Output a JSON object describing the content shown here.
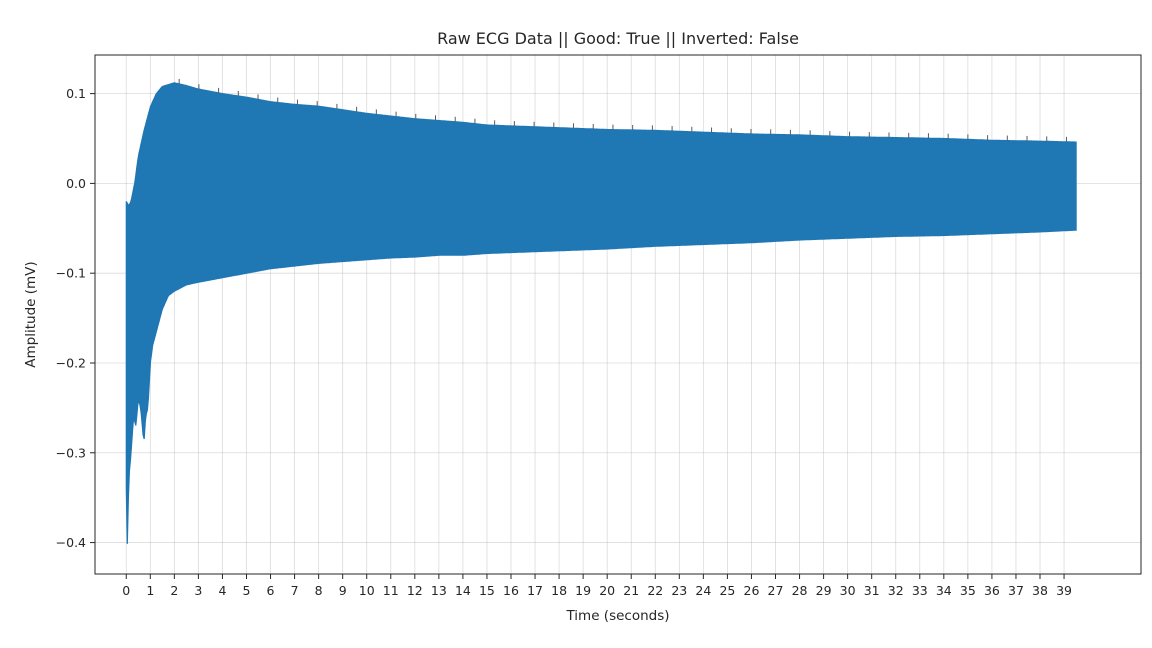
{
  "chart_data": {
    "type": "line",
    "title": "Raw ECG Data || Good: True || Inverted: False",
    "xlabel": "Time (seconds)",
    "ylabel": "Amplitude (mV)",
    "xlim": [
      -1.3,
      42.2
    ],
    "ylim": [
      -0.435,
      0.143
    ],
    "xticks": [
      0,
      1,
      2,
      3,
      4,
      5,
      6,
      7,
      8,
      9,
      10,
      11,
      12,
      13,
      14,
      15,
      16,
      17,
      18,
      19,
      20,
      21,
      22,
      23,
      24,
      25,
      26,
      27,
      28,
      29,
      30,
      31,
      32,
      33,
      34,
      35,
      36,
      37,
      38,
      39
    ],
    "yticks": [
      0.1,
      0.0,
      -0.1,
      -0.2,
      -0.3,
      -0.4
    ],
    "ytick_labels": [
      "0.1",
      "0.0",
      "−0.1",
      "−0.2",
      "−0.3",
      "−0.4"
    ],
    "grid": true,
    "series": [
      {
        "color": "#1f77b4",
        "upper_envelope": {
          "x": [
            0.0,
            0.1,
            0.2,
            0.35,
            0.5,
            0.75,
            1.0,
            1.25,
            1.5,
            2.0,
            2.5,
            3.0,
            4.0,
            5.0,
            6.0,
            7.0,
            8.0,
            9.0,
            10.0,
            11.0,
            12.0,
            13.0,
            14.0,
            15.0,
            16.0,
            17.0,
            18.0,
            19.0,
            20.0,
            22.0,
            24.0,
            26.0,
            28.0,
            30.0,
            32.0,
            34.0,
            36.0,
            38.0,
            39.5
          ],
          "y": [
            -0.02,
            -0.025,
            -0.02,
            0.0,
            0.03,
            0.06,
            0.085,
            0.1,
            0.108,
            0.112,
            0.109,
            0.105,
            0.1,
            0.096,
            0.091,
            0.088,
            0.086,
            0.082,
            0.078,
            0.075,
            0.072,
            0.07,
            0.068,
            0.065,
            0.064,
            0.063,
            0.062,
            0.061,
            0.06,
            0.059,
            0.057,
            0.055,
            0.054,
            0.052,
            0.051,
            0.05,
            0.048,
            0.047,
            0.046
          ]
        },
        "lower_envelope": {
          "x": [
            0.0,
            0.05,
            0.1,
            0.2,
            0.3,
            0.4,
            0.5,
            0.6,
            0.7,
            0.75,
            0.8,
            0.9,
            1.0,
            1.1,
            1.3,
            1.5,
            1.75,
            2.0,
            2.5,
            3.0,
            4.0,
            5.0,
            6.0,
            7.0,
            8.0,
            9.0,
            10.0,
            11.0,
            12.0,
            13.0,
            14.0,
            15.0,
            16.0,
            17.0,
            18.0,
            19.0,
            20.0,
            22.0,
            24.0,
            26.0,
            28.0,
            30.0,
            32.0,
            34.0,
            36.0,
            38.0,
            39.5
          ],
          "y": [
            -0.34,
            -0.41,
            -0.33,
            -0.3,
            -0.26,
            -0.27,
            -0.24,
            -0.25,
            -0.28,
            -0.285,
            -0.26,
            -0.25,
            -0.2,
            -0.18,
            -0.16,
            -0.14,
            -0.125,
            -0.12,
            -0.113,
            -0.11,
            -0.105,
            -0.1,
            -0.095,
            -0.092,
            -0.089,
            -0.087,
            -0.085,
            -0.083,
            -0.082,
            -0.08,
            -0.08,
            -0.078,
            -0.077,
            -0.076,
            -0.075,
            -0.074,
            -0.073,
            -0.07,
            -0.068,
            -0.066,
            -0.063,
            -0.061,
            -0.059,
            -0.058,
            -0.056,
            -0.054,
            -0.052
          ]
        }
      }
    ]
  }
}
